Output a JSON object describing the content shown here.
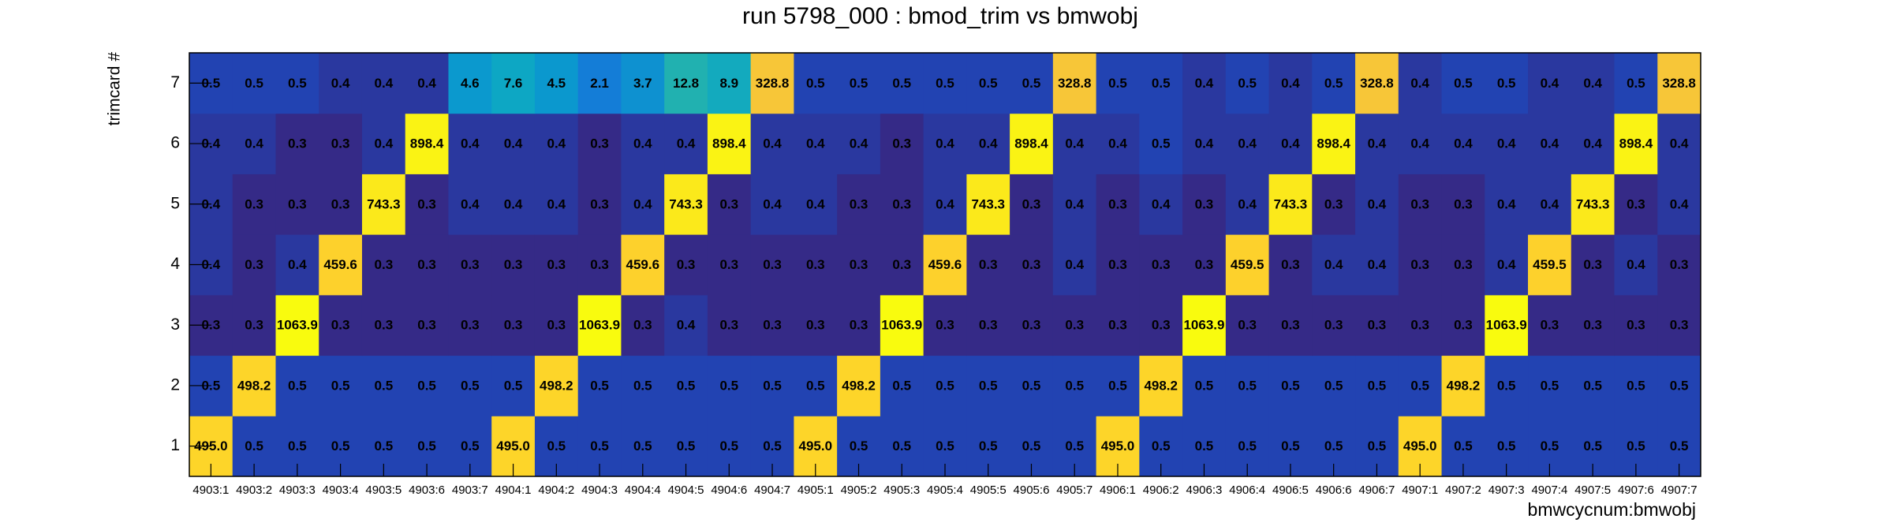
{
  "chart_data": {
    "type": "heatmap",
    "title": "run 5798_000 : bmod_trim vs bmwobj",
    "x_label": "bmwcycnum:bmwobj",
    "y_label": "trimcard #",
    "x_categories": [
      "4903:1",
      "4903:2",
      "4903:3",
      "4903:4",
      "4903:5",
      "4903:6",
      "4903:7",
      "4904:1",
      "4904:2",
      "4904:3",
      "4904:4",
      "4904:5",
      "4904:6",
      "4904:7",
      "4905:1",
      "4905:2",
      "4905:3",
      "4905:4",
      "4905:5",
      "4905:6",
      "4905:7",
      "4906:1",
      "4906:2",
      "4906:3",
      "4906:4",
      "4906:5",
      "4906:6",
      "4906:7",
      "4907:1",
      "4907:2",
      "4907:3",
      "4907:4",
      "4907:5",
      "4907:6",
      "4907:7"
    ],
    "y_categories": [
      1,
      2,
      3,
      4,
      5,
      6,
      7
    ],
    "values": [
      [
        495,
        0.5,
        0.5,
        0.5,
        0.5,
        0.5,
        0.5,
        495,
        0.5,
        0.5,
        0.5,
        0.5,
        0.5,
        0.5,
        495,
        0.5,
        0.5,
        0.5,
        0.5,
        0.5,
        0.5,
        495,
        0.5,
        0.5,
        0.5,
        0.5,
        0.5,
        0.5,
        495,
        0.5,
        0.5,
        0.5,
        0.5,
        0.5,
        0.5
      ],
      [
        0.5,
        498.2,
        0.5,
        0.5,
        0.5,
        0.5,
        0.5,
        0.5,
        498.2,
        0.5,
        0.5,
        0.5,
        0.5,
        0.5,
        0.5,
        498.2,
        0.5,
        0.5,
        0.5,
        0.5,
        0.5,
        0.5,
        498.2,
        0.5,
        0.5,
        0.5,
        0.5,
        0.5,
        0.5,
        498.2,
        0.5,
        0.5,
        0.5,
        0.5,
        0.5
      ],
      [
        0.3,
        0.3,
        1063.9,
        0.3,
        0.3,
        0.3,
        0.3,
        0.3,
        0.3,
        1063.9,
        0.3,
        0.4,
        0.3,
        0.3,
        0.3,
        0.3,
        1063.9,
        0.3,
        0.3,
        0.3,
        0.3,
        0.3,
        0.3,
        1063.9,
        0.3,
        0.3,
        0.3,
        0.3,
        0.3,
        0.3,
        1063.9,
        0.3,
        0.3,
        0.3,
        0.3
      ],
      [
        0.4,
        0.3,
        0.4,
        459.6,
        0.3,
        0.3,
        0.3,
        0.3,
        0.3,
        0.3,
        459.6,
        0.3,
        0.3,
        0.3,
        0.3,
        0.3,
        0.3,
        459.6,
        0.3,
        0.3,
        0.4,
        0.3,
        0.3,
        0.3,
        459.5,
        0.3,
        0.4,
        0.4,
        0.3,
        0.3,
        0.4,
        459.5,
        0.3,
        0.4,
        0.3
      ],
      [
        0.4,
        0.3,
        0.3,
        0.3,
        743.3,
        0.3,
        0.4,
        0.4,
        0.4,
        0.3,
        0.4,
        743.3,
        0.3,
        0.4,
        0.4,
        0.3,
        0.3,
        0.4,
        743.3,
        0.3,
        0.4,
        0.3,
        0.4,
        0.3,
        0.4,
        743.3,
        0.3,
        0.4,
        0.3,
        0.3,
        0.4,
        0.4,
        743.3,
        0.3,
        0.4
      ],
      [
        0.4,
        0.4,
        0.3,
        0.3,
        0.4,
        898.4,
        0.4,
        0.4,
        0.4,
        0.3,
        0.4,
        0.4,
        898.4,
        0.4,
        0.4,
        0.4,
        0.3,
        0.4,
        0.4,
        898.4,
        0.4,
        0.4,
        0.5,
        0.4,
        0.4,
        0.4,
        898.4,
        0.4,
        0.4,
        0.4,
        0.4,
        0.4,
        0.4,
        898.4,
        0.4
      ],
      [
        0.5,
        0.5,
        0.5,
        0.4,
        0.4,
        0.4,
        4.6,
        7.6,
        4.5,
        2.1,
        3.7,
        12.8,
        8.9,
        328.8,
        0.5,
        0.5,
        0.5,
        0.5,
        0.5,
        0.5,
        328.8,
        0.5,
        0.5,
        0.4,
        0.5,
        0.4,
        0.5,
        328.8,
        0.4,
        0.5,
        0.5,
        0.4,
        0.4,
        0.5,
        328.8
      ]
    ],
    "value_labels": [
      [
        "495.0",
        "0.5",
        "0.5",
        "0.5",
        "0.5",
        "0.5",
        "0.5",
        "495.0",
        "0.5",
        "0.5",
        "0.5",
        "0.5",
        "0.5",
        "0.5",
        "495.0",
        "0.5",
        "0.5",
        "0.5",
        "0.5",
        "0.5",
        "0.5",
        "495.0",
        "0.5",
        "0.5",
        "0.5",
        "0.5",
        "0.5",
        "0.5",
        "495.0",
        "0.5",
        "0.5",
        "0.5",
        "0.5",
        "0.5",
        "0.5"
      ],
      [
        "0.5",
        "498.2",
        "0.5",
        "0.5",
        "0.5",
        "0.5",
        "0.5",
        "0.5",
        "498.2",
        "0.5",
        "0.5",
        "0.5",
        "0.5",
        "0.5",
        "0.5",
        "498.2",
        "0.5",
        "0.5",
        "0.5",
        "0.5",
        "0.5",
        "0.5",
        "498.2",
        "0.5",
        "0.5",
        "0.5",
        "0.5",
        "0.5",
        "0.5",
        "498.2",
        "0.5",
        "0.5",
        "0.5",
        "0.5",
        "0.5"
      ],
      [
        "0.3",
        "0.3",
        "1063.9",
        "0.3",
        "0.3",
        "0.3",
        "0.3",
        "0.3",
        "0.3",
        "1063.9",
        "0.3",
        "0.4",
        "0.3",
        "0.3",
        "0.3",
        "0.3",
        "1063.9",
        "0.3",
        "0.3",
        "0.3",
        "0.3",
        "0.3",
        "0.3",
        "1063.9",
        "0.3",
        "0.3",
        "0.3",
        "0.3",
        "0.3",
        "0.3",
        "1063.9",
        "0.3",
        "0.3",
        "0.3",
        "0.3"
      ],
      [
        "0.4",
        "0.3",
        "0.4",
        "459.6",
        "0.3",
        "0.3",
        "0.3",
        "0.3",
        "0.3",
        "0.3",
        "459.6",
        "0.3",
        "0.3",
        "0.3",
        "0.3",
        "0.3",
        "0.3",
        "459.6",
        "0.3",
        "0.3",
        "0.4",
        "0.3",
        "0.3",
        "0.3",
        "459.5",
        "0.3",
        "0.4",
        "0.4",
        "0.3",
        "0.3",
        "0.4",
        "459.5",
        "0.3",
        "0.4",
        "0.3"
      ],
      [
        "0.4",
        "0.3",
        "0.3",
        "0.3",
        "743.3",
        "0.3",
        "0.4",
        "0.4",
        "0.4",
        "0.3",
        "0.4",
        "743.3",
        "0.3",
        "0.4",
        "0.4",
        "0.3",
        "0.3",
        "0.4",
        "743.3",
        "0.3",
        "0.4",
        "0.3",
        "0.4",
        "0.3",
        "0.4",
        "743.3",
        "0.3",
        "0.4",
        "0.3",
        "0.3",
        "0.4",
        "0.4",
        "743.3",
        "0.3",
        "0.4"
      ],
      [
        "0.4",
        "0.4",
        "0.3",
        "0.3",
        "0.4",
        "898.4",
        "0.4",
        "0.4",
        "0.4",
        "0.3",
        "0.4",
        "0.4",
        "898.4",
        "0.4",
        "0.4",
        "0.4",
        "0.3",
        "0.4",
        "0.4",
        "898.4",
        "0.4",
        "0.4",
        "0.5",
        "0.4",
        "0.4",
        "0.4",
        "898.4",
        "0.4",
        "0.4",
        "0.4",
        "0.4",
        "0.4",
        "0.4",
        "898.4",
        "0.4"
      ],
      [
        "0.5",
        "0.5",
        "0.5",
        "0.4",
        "0.4",
        "0.4",
        "4.6",
        "7.6",
        "4.5",
        "2.1",
        "3.7",
        "12.8",
        "8.9",
        "328.8",
        "0.5",
        "0.5",
        "0.5",
        "0.5",
        "0.5",
        "0.5",
        "328.8",
        "0.5",
        "0.5",
        "0.4",
        "0.5",
        "0.4",
        "0.5",
        "328.8",
        "0.4",
        "0.5",
        "0.5",
        "0.4",
        "0.4",
        "0.5",
        "328.8"
      ]
    ],
    "zscale": "log",
    "palette": [
      "#352a87",
      "#0f5cdd",
      "#1481d6",
      "#06a4ca",
      "#2eb7a4",
      "#87bf77",
      "#d1bb59",
      "#fec832",
      "#f9fb0e"
    ]
  }
}
